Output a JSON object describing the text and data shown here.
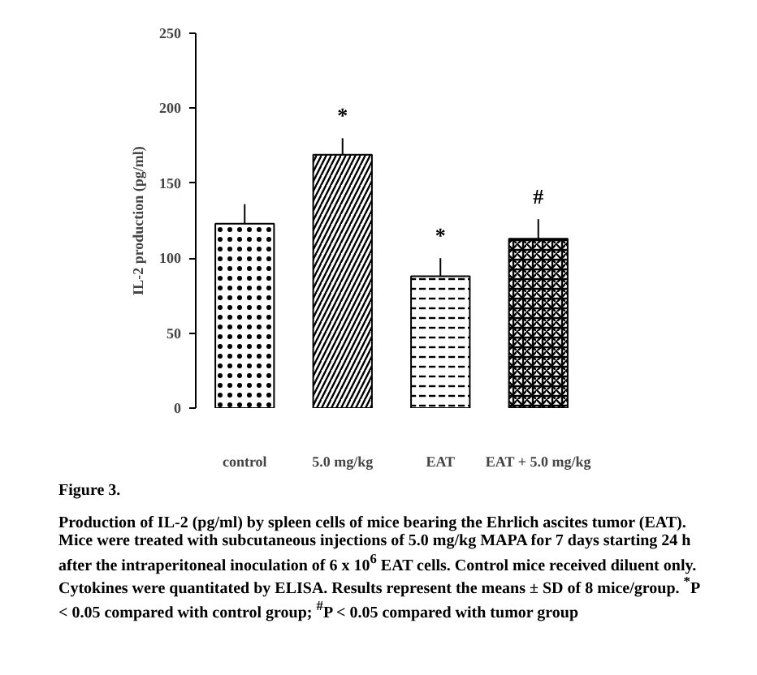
{
  "chart_data": {
    "type": "bar",
    "ylabel": "IL-2 production (pg/ml)",
    "categories": [
      "control",
      "5.0 mg/kg",
      "EAT",
      "EAT + 5.0 mg/kg"
    ],
    "values": [
      123,
      169,
      88,
      113
    ],
    "errors": [
      13,
      11,
      12,
      13
    ],
    "color": "#000000",
    "ylim": [
      0,
      250
    ],
    "yticks": [
      0,
      50,
      100,
      150,
      200,
      250
    ],
    "grid": false,
    "annotations": [
      {
        "text": "*",
        "x": "5.0 mg/kg",
        "y": 169
      },
      {
        "text": "*",
        "x": "EAT",
        "y": 88
      },
      {
        "text": "#",
        "x": "EAT + 5.0 mg/kg",
        "y": 113
      },
      "Figure 3.",
      "Production of IL-2 (pg/ml) by spleen cells of mice bearing the Ehrlich ascites tumor (EAT). Mice were treated with subcutaneous injections of 5.0 mg/kg MAPA for 7 days starting 24 h after the intraperitoneal inoculation of 6 x 10$^{6}$ EAT cells. Control mice received diluent only. Cytokines were quantitated by ELISA. Results represent the means ± SD of 8 mice/group. $^{*}$P < 0.05 compared with control group; $^{#}$P < 0.05 compared with tumor group"
    ]
  }
}
